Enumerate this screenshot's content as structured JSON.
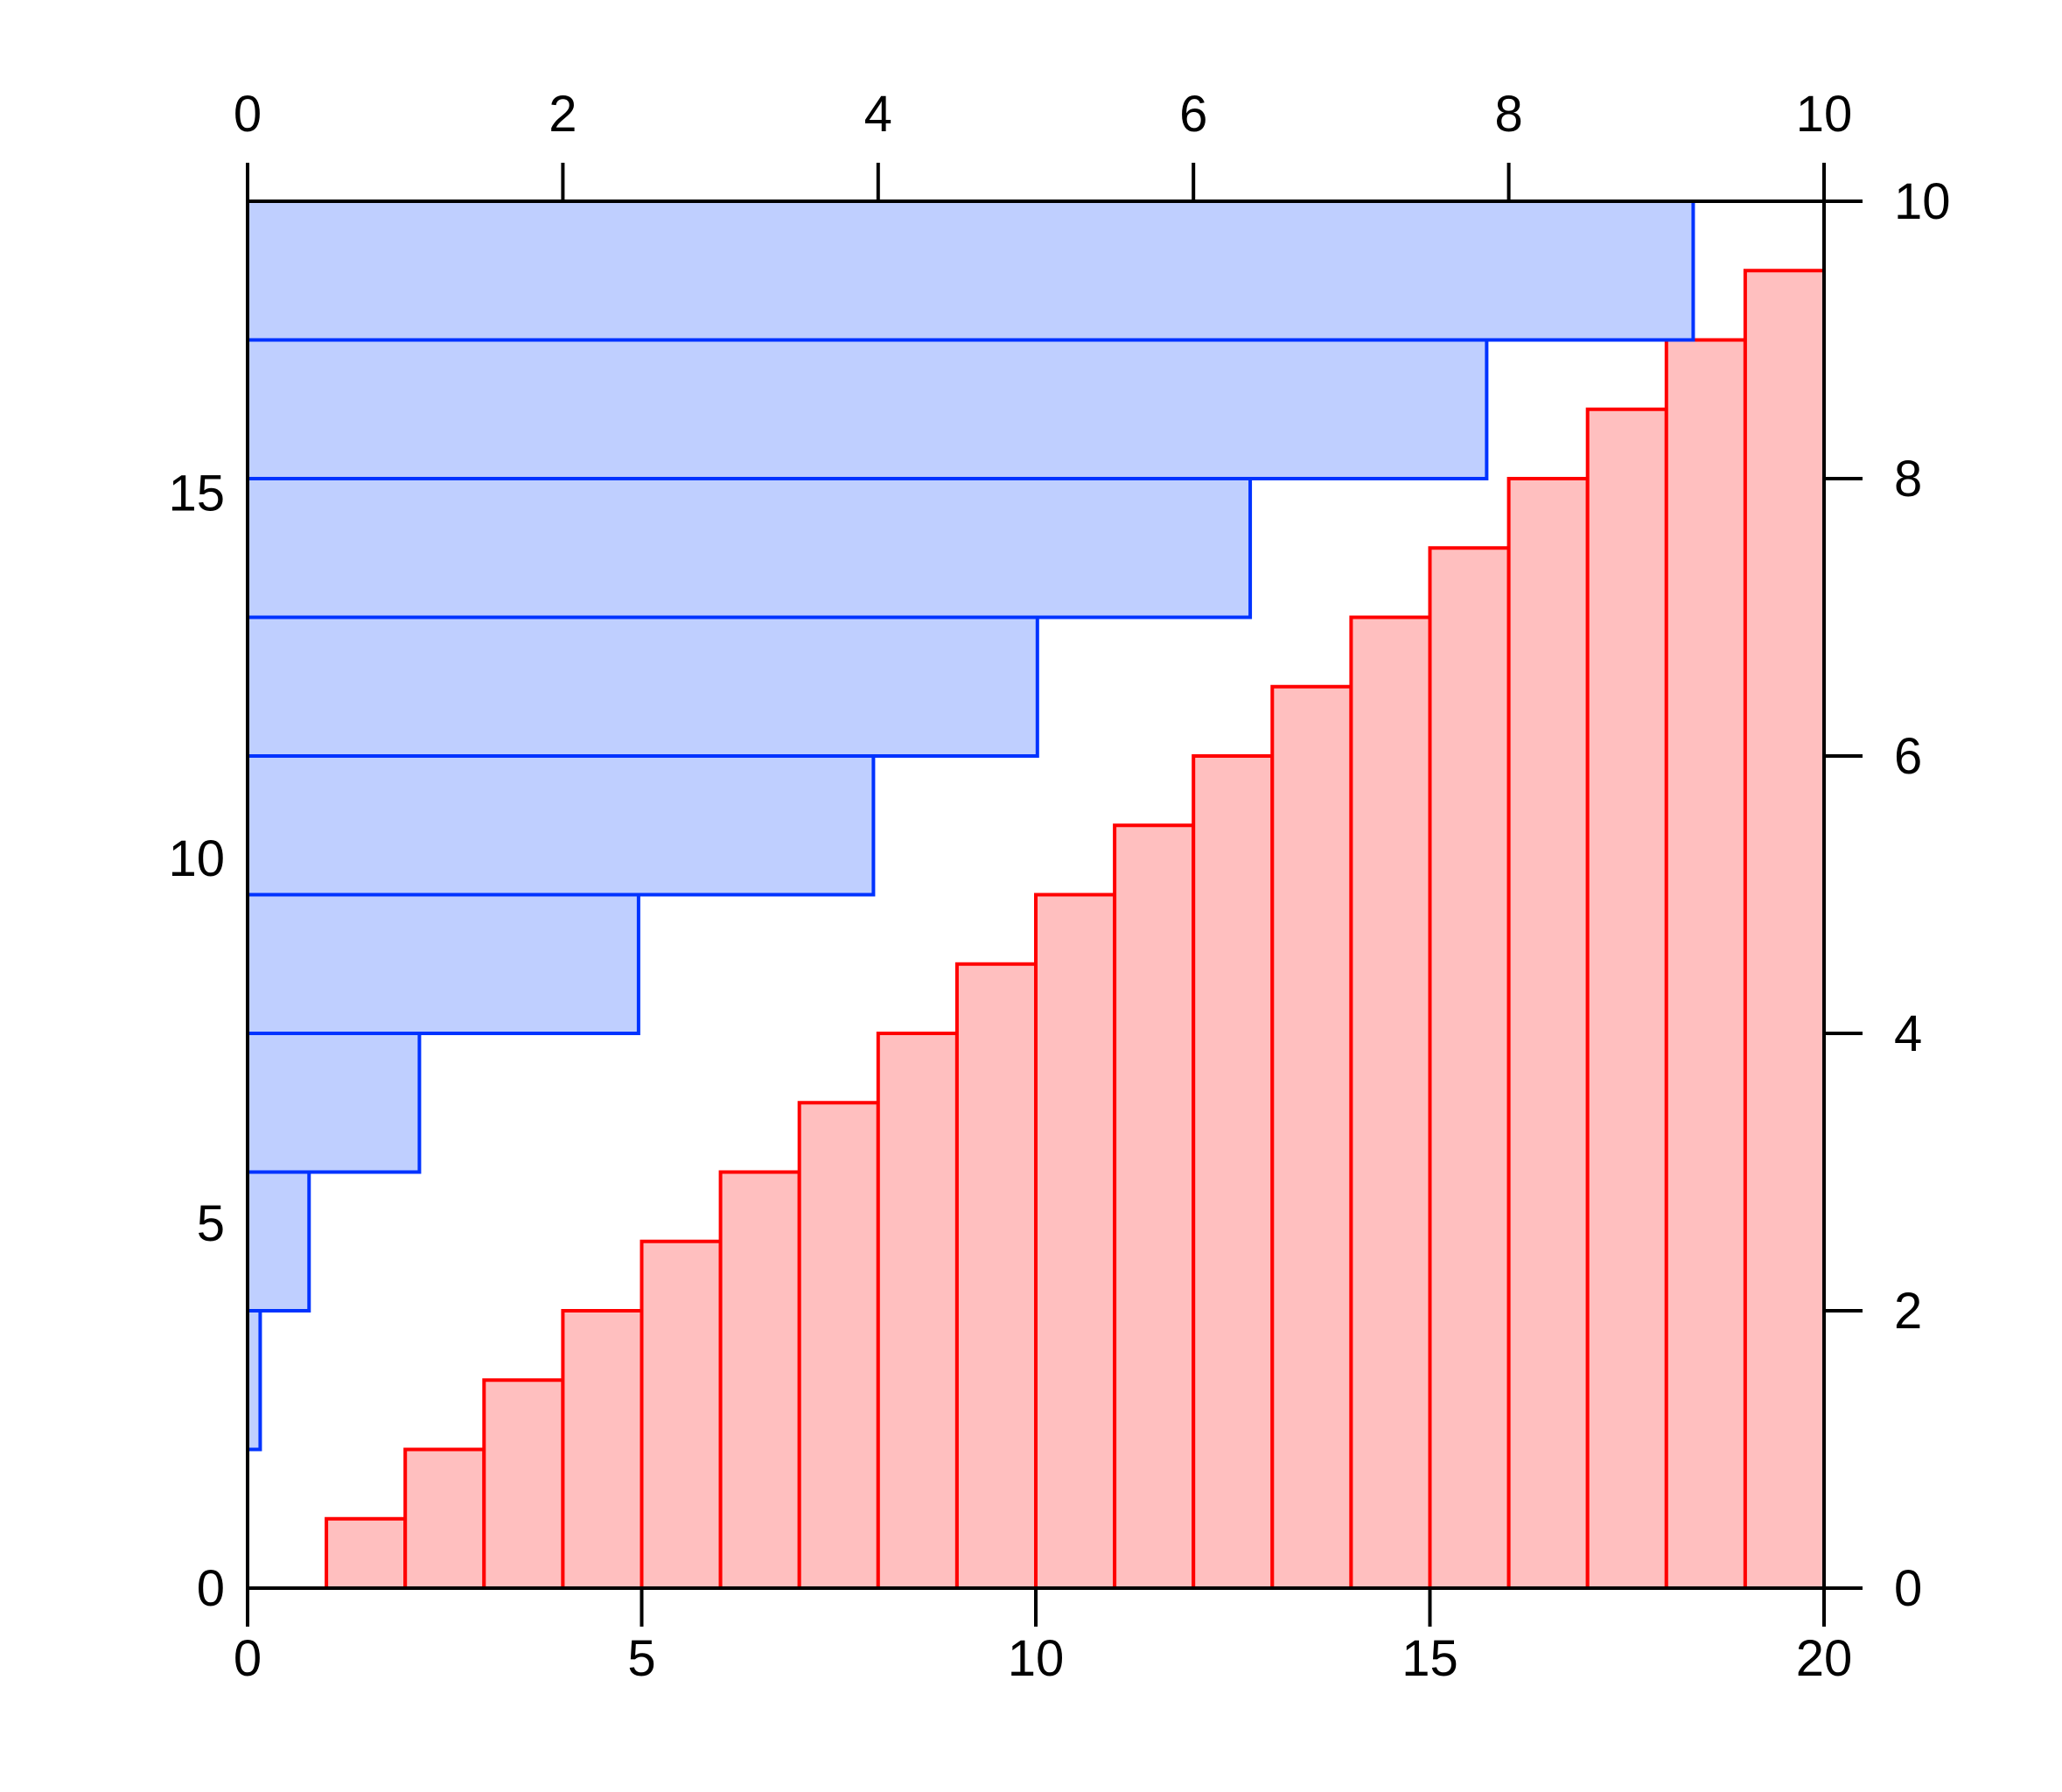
{
  "chart_data": [
    {
      "type": "bar",
      "orientation": "vertical",
      "x_axis": "bottom",
      "y_axis": "right",
      "categories": [
        0,
        1,
        2,
        3,
        4,
        5,
        6,
        7,
        8,
        9,
        10,
        11,
        12,
        13,
        14,
        15,
        16,
        17,
        18,
        19
      ],
      "values": [
        0,
        0.5,
        1.0,
        1.5,
        2.0,
        2.5,
        3.0,
        3.5,
        4.0,
        4.5,
        5.0,
        5.5,
        6.0,
        6.5,
        7.0,
        7.5,
        8.0,
        8.5,
        9.0,
        9.5
      ],
      "bar_width": 1,
      "xlim": [
        0,
        20
      ],
      "ylim": [
        0,
        10
      ],
      "xticks": [
        0,
        5,
        10,
        15,
        20
      ],
      "yticks": [
        0,
        2,
        4,
        6,
        8,
        10
      ],
      "fill_color": "#ffbfbf",
      "edge_color": "#ff0000"
    },
    {
      "type": "bar",
      "orientation": "horizontal",
      "x_axis": "top",
      "y_axis": "left",
      "categories": [
        0,
        1.9,
        3.8,
        5.7,
        7.6,
        9.5,
        11.4,
        13.3,
        15.2,
        17.1
      ],
      "values": [
        0,
        0.08,
        0.39,
        1.09,
        2.48,
        3.97,
        5.01,
        6.36,
        7.86,
        9.17
      ],
      "bar_height": 1.9,
      "xlim": [
        0,
        10
      ],
      "ylim": [
        0,
        19
      ],
      "xticks": [
        0,
        2,
        4,
        6,
        8,
        10
      ],
      "yticks": [
        0,
        5,
        10,
        15
      ],
      "fill_color": "#bfcfff",
      "edge_color": "#0033ff"
    }
  ]
}
